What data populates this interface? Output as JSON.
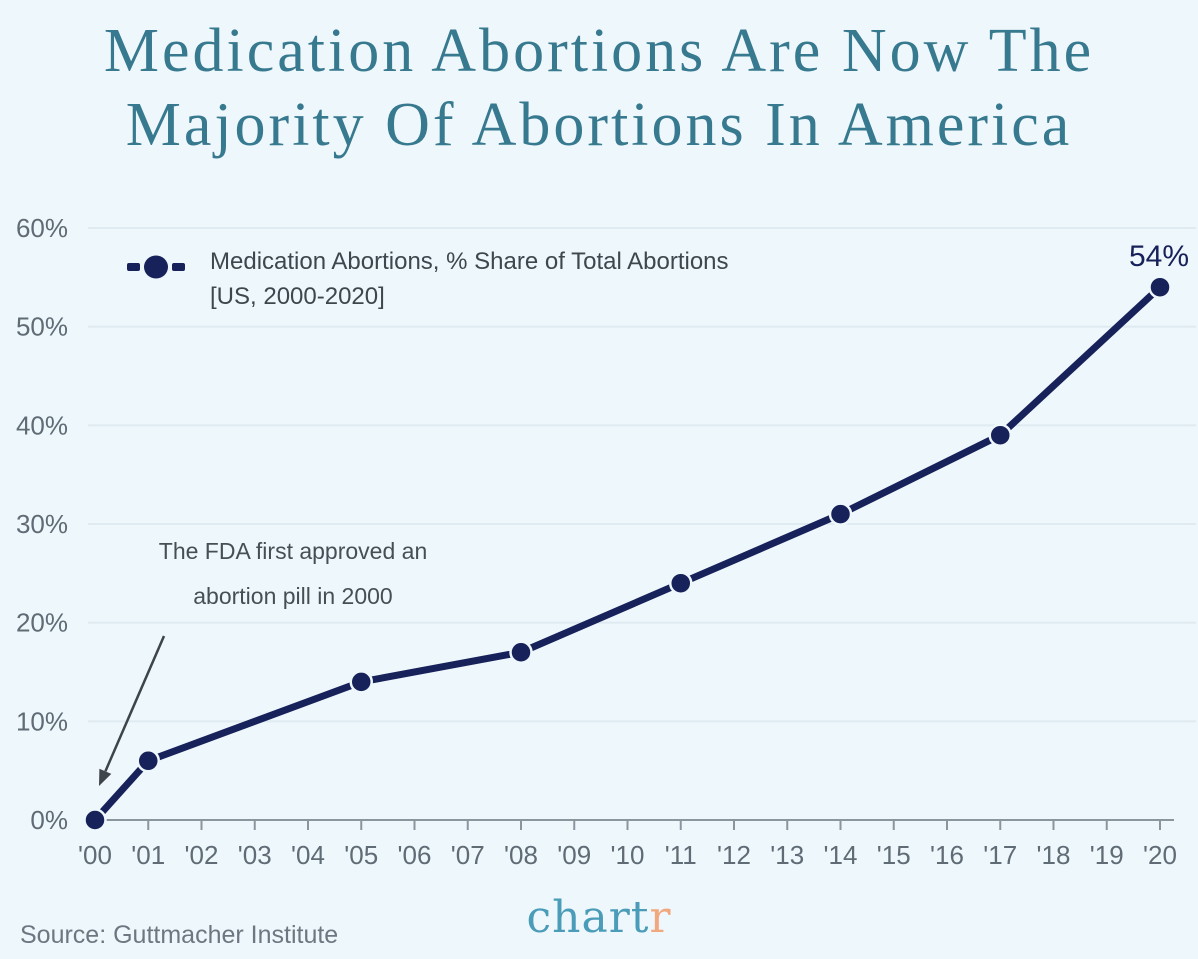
{
  "title": {
    "line1": "Medication Abortions Are Now The",
    "line2": "Majority Of Abortions In America"
  },
  "legend": {
    "line1": "Medication Abortions, % Share of Total Abortions",
    "line2": "[US, 2000-2020]"
  },
  "annotation": {
    "line1": "The FDA first approved an",
    "line2": "abortion pill in 2000"
  },
  "end_label": "54%",
  "source": "Source: Guttmacher Institute",
  "logo": {
    "part1": "chart",
    "part2": "r"
  },
  "colors": {
    "background": "#eef7fb",
    "title_teal": "#37798f",
    "line_navy": "#17215a",
    "axis_gray": "#8b959e",
    "tick_label_gray": "#5f6b75",
    "grid_line": "#dfeaf1",
    "annotation_text": "#474f56",
    "arrow": "#3d444a",
    "source_gray": "#6e7781",
    "logo_teal": "#4a9cb8",
    "logo_orange": "#f2a87e"
  },
  "chart_data": {
    "type": "line",
    "title": "Medication Abortions Are Now The Majority Of Abortions In America",
    "xlabel": "",
    "ylabel": "",
    "xlim": [
      2000,
      2020
    ],
    "ylim": [
      0,
      60
    ],
    "grid": "horizontal",
    "legend_position": "top-left-inside",
    "x_ticks": [
      "'00",
      "'01",
      "'02",
      "'03",
      "'04",
      "'05",
      "'06",
      "'07",
      "'08",
      "'09",
      "'10",
      "'11",
      "'12",
      "'13",
      "'14",
      "'15",
      "'16",
      "'17",
      "'18",
      "'19",
      "'20"
    ],
    "y_ticks": [
      "0%",
      "10%",
      "20%",
      "30%",
      "40%",
      "50%",
      "60%"
    ],
    "series": [
      {
        "name": "Medication Abortions, % Share of Total Abortions [US, 2000-2020]",
        "points": [
          {
            "year": 2000,
            "value": 0
          },
          {
            "year": 2001,
            "value": 6
          },
          {
            "year": 2005,
            "value": 14
          },
          {
            "year": 2008,
            "value": 17
          },
          {
            "year": 2011,
            "value": 24
          },
          {
            "year": 2014,
            "value": 31
          },
          {
            "year": 2017,
            "value": 39
          },
          {
            "year": 2020,
            "value": 54
          }
        ]
      }
    ],
    "annotations": [
      {
        "text": "The FDA first approved an abortion pill in 2000",
        "points_to": {
          "year": 2000,
          "value": 0
        }
      },
      {
        "text": "54%",
        "at": {
          "year": 2020,
          "value": 54
        }
      }
    ],
    "source": "Guttmacher Institute"
  }
}
